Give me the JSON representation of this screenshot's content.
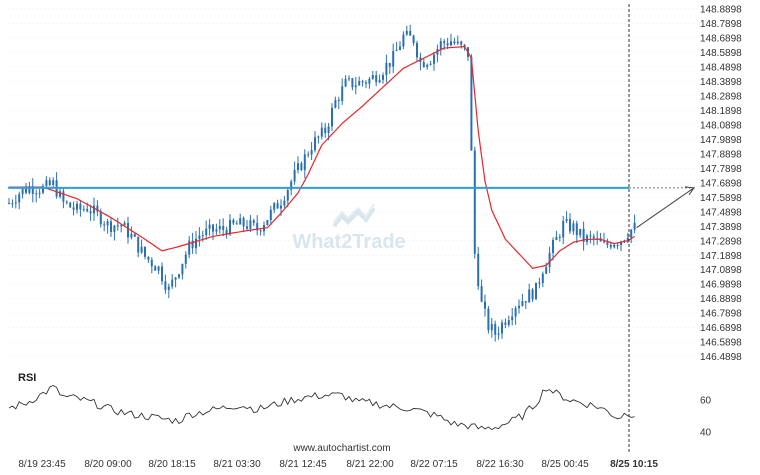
{
  "source_text": "www.autochartist.com",
  "watermark_text": "What2Trade",
  "colors": {
    "candle": "#2a6fb0",
    "ma": "#e8262a",
    "level": "#2b9fd9",
    "rsi": "#333333",
    "forecast": "#444444",
    "grid": "#dddddd"
  },
  "chart_data": {
    "type": "candlestick",
    "price_ylim": [
      146.46,
      148.91
    ],
    "rsi_ylim": [
      35,
      75
    ],
    "y_ticks": [
      "148.8898",
      "148.7898",
      "148.6898",
      "148.5898",
      "148.4898",
      "148.3898",
      "148.2898",
      "148.1898",
      "148.0898",
      "147.9898",
      "147.8898",
      "147.7898",
      "147.6898",
      "147.5898",
      "147.4898",
      "147.3898",
      "147.2898",
      "147.1898",
      "147.0898",
      "146.9898",
      "146.8898",
      "146.7898",
      "146.6898",
      "146.5898",
      "146.4898"
    ],
    "x_ticks": [
      "8/19 23:45",
      "8/20 09:00",
      "8/20 18:15",
      "8/21 03:30",
      "8/21 12:45",
      "8/21 22:00",
      "8/22 07:15",
      "8/22 16:30",
      "8/25 00:45",
      "8/25 10:15"
    ],
    "rsi_label": "RSI",
    "rsi_ticks": [
      "60",
      "40"
    ],
    "resistance_level": 147.655,
    "forecast_target": 147.655,
    "price_anchors": [
      [
        0,
        147.55
      ],
      [
        3,
        147.62
      ],
      [
        6,
        147.66
      ],
      [
        10,
        147.65
      ],
      [
        13,
        147.68
      ],
      [
        16,
        147.55
      ],
      [
        20,
        147.5
      ],
      [
        23,
        147.52
      ],
      [
        27,
        147.45
      ],
      [
        29,
        147.4
      ],
      [
        33,
        147.4
      ],
      [
        36,
        147.32
      ],
      [
        40,
        147.18
      ],
      [
        44,
        147.1
      ],
      [
        47,
        146.95
      ],
      [
        50,
        147.1
      ],
      [
        53,
        147.25
      ],
      [
        56,
        147.33
      ],
      [
        60,
        147.36
      ],
      [
        63,
        147.37
      ],
      [
        67,
        147.4
      ],
      [
        70,
        147.4
      ],
      [
        73,
        147.37
      ],
      [
        76,
        147.45
      ],
      [
        80,
        147.57
      ],
      [
        83,
        147.7
      ],
      [
        86,
        147.82
      ],
      [
        89,
        147.95
      ],
      [
        93,
        148.05
      ],
      [
        96,
        148.25
      ],
      [
        99,
        148.37
      ],
      [
        103,
        148.38
      ],
      [
        106,
        148.4
      ],
      [
        109,
        148.45
      ],
      [
        113,
        148.55
      ],
      [
        116,
        148.7
      ],
      [
        119,
        148.68
      ],
      [
        121,
        148.52
      ],
      [
        124,
        148.55
      ],
      [
        127,
        148.65
      ],
      [
        130,
        148.67
      ],
      [
        133,
        148.62
      ],
      [
        135,
        148.58
      ],
      [
        137,
        147.2
      ],
      [
        139,
        146.85
      ],
      [
        141,
        146.7
      ],
      [
        143,
        146.65
      ],
      [
        146,
        146.75
      ],
      [
        149,
        146.85
      ],
      [
        152,
        146.9
      ],
      [
        155,
        146.95
      ],
      [
        157,
        147.1
      ],
      [
        160,
        147.25
      ],
      [
        163,
        147.4
      ],
      [
        166,
        147.38
      ],
      [
        169,
        147.3
      ],
      [
        172,
        147.3
      ],
      [
        175,
        147.25
      ],
      [
        177,
        147.28
      ],
      [
        180,
        147.3
      ],
      [
        182,
        147.35
      ],
      [
        184,
        147.38
      ]
    ],
    "ma_anchors": [
      [
        0,
        147.66
      ],
      [
        10,
        147.66
      ],
      [
        20,
        147.58
      ],
      [
        30,
        147.45
      ],
      [
        40,
        147.3
      ],
      [
        45,
        147.22
      ],
      [
        50,
        147.25
      ],
      [
        60,
        147.32
      ],
      [
        70,
        147.36
      ],
      [
        76,
        147.38
      ],
      [
        80,
        147.48
      ],
      [
        85,
        147.62
      ],
      [
        88,
        147.75
      ],
      [
        92,
        147.95
      ],
      [
        98,
        148.1
      ],
      [
        104,
        148.22
      ],
      [
        110,
        148.35
      ],
      [
        116,
        148.48
      ],
      [
        122,
        148.55
      ],
      [
        128,
        148.62
      ],
      [
        134,
        148.63
      ],
      [
        136,
        148.55
      ],
      [
        138,
        148.05
      ],
      [
        140,
        147.7
      ],
      [
        142,
        147.5
      ],
      [
        146,
        147.3
      ],
      [
        150,
        147.2
      ],
      [
        154,
        147.1
      ],
      [
        158,
        147.12
      ],
      [
        162,
        147.22
      ],
      [
        166,
        147.28
      ],
      [
        170,
        147.3
      ],
      [
        174,
        147.3
      ],
      [
        178,
        147.27
      ],
      [
        182,
        147.29
      ],
      [
        184,
        147.32
      ]
    ],
    "rsi_anchors": [
      [
        0,
        55
      ],
      [
        5,
        58
      ],
      [
        10,
        64
      ],
      [
        13,
        68
      ],
      [
        16,
        62
      ],
      [
        20,
        61
      ],
      [
        25,
        58
      ],
      [
        30,
        54
      ],
      [
        36,
        51
      ],
      [
        40,
        50
      ],
      [
        46,
        48
      ],
      [
        50,
        47
      ],
      [
        53,
        51
      ],
      [
        58,
        53
      ],
      [
        63,
        55
      ],
      [
        68,
        57
      ],
      [
        73,
        54
      ],
      [
        78,
        57
      ],
      [
        83,
        60
      ],
      [
        88,
        62
      ],
      [
        93,
        63
      ],
      [
        98,
        63
      ],
      [
        102,
        59
      ],
      [
        107,
        58
      ],
      [
        112,
        56
      ],
      [
        117,
        55
      ],
      [
        121,
        53
      ],
      [
        126,
        50
      ],
      [
        131,
        45
      ],
      [
        135,
        44
      ],
      [
        139,
        42
      ],
      [
        143,
        43
      ],
      [
        147,
        46
      ],
      [
        151,
        50
      ],
      [
        155,
        58
      ],
      [
        158,
        68
      ],
      [
        161,
        64
      ],
      [
        165,
        60
      ],
      [
        169,
        58
      ],
      [
        173,
        56
      ],
      [
        176,
        53
      ],
      [
        179,
        49
      ],
      [
        182,
        52
      ],
      [
        184,
        51
      ]
    ]
  }
}
